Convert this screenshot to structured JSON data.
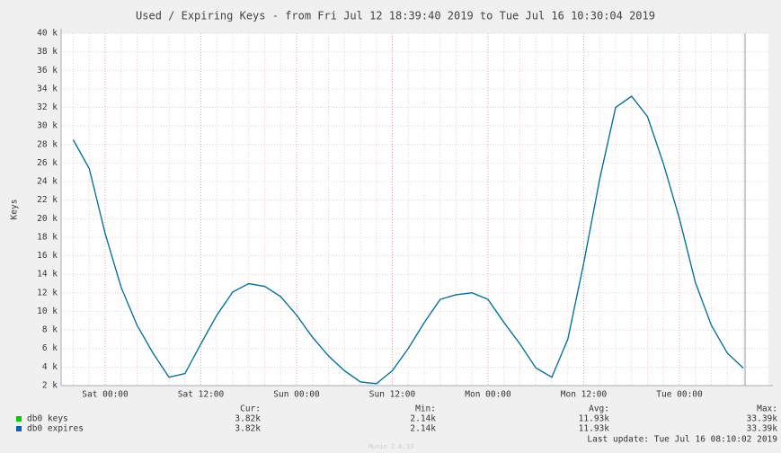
{
  "chart_data": {
    "type": "line",
    "title": "Used / Expiring Keys - from Fri Jul 12 18:39:40 2019 to Tue Jul 16 10:30:04 2019",
    "y_label": "Keys",
    "categories": [
      null,
      null,
      "Sat 00:00",
      null,
      null,
      null,
      null,
      null,
      "Sat 12:00",
      null,
      null,
      null,
      null,
      null,
      "Sun 00:00",
      null,
      null,
      null,
      null,
      null,
      "Sun 12:00",
      null,
      null,
      null,
      null,
      null,
      "Mon 00:00",
      null,
      null,
      null,
      null,
      null,
      "Mon 12:00",
      null,
      null,
      null,
      null,
      null,
      "Tue 00:00",
      null,
      null,
      null,
      null
    ],
    "series": [
      {
        "name": "db0 keys",
        "color": "#00cc00",
        "cur": "3.82k",
        "min": "2.14k",
        "avg": "11.93k",
        "max": "33.39k",
        "values": [
          28500,
          25400,
          18400,
          12600,
          8500,
          5500,
          2900,
          3300,
          6500,
          9600,
          12100,
          13000,
          12700,
          11600,
          9600,
          7200,
          5200,
          3600,
          2400,
          2200,
          3600,
          6000,
          8800,
          11300,
          11800,
          12000,
          11300,
          8800,
          6500,
          3900,
          2900,
          7000,
          15200,
          24300,
          32000,
          33200,
          31000,
          25900,
          20000,
          13100,
          8500,
          5500,
          3900
        ]
      },
      {
        "name": "db0 expires",
        "color": "#0066b3",
        "cur": "3.82k",
        "min": "2.14k",
        "avg": "11.93k",
        "max": "33.39k",
        "values": [
          28500,
          25400,
          18400,
          12600,
          8500,
          5500,
          2900,
          3300,
          6500,
          9600,
          12100,
          13000,
          12700,
          11600,
          9600,
          7200,
          5200,
          3600,
          2400,
          2200,
          3600,
          6000,
          8800,
          11300,
          11800,
          12000,
          11300,
          8800,
          6500,
          3900,
          2900,
          7000,
          15200,
          24300,
          32000,
          33200,
          31000,
          25900,
          20000,
          13100,
          8500,
          5500,
          3900
        ]
      }
    ],
    "legend_headers": [
      "Cur:",
      "Min:",
      "Avg:",
      "Max:"
    ],
    "last_update": "Last update: Tue Jul 16 08:10:02 2019",
    "footer": "Munin 2.0.33",
    "ylim": [
      2000,
      40000
    ],
    "yticks": [
      {
        "value": 2000,
        "label": "2 k"
      },
      {
        "value": 4000,
        "label": "4 k"
      },
      {
        "value": 6000,
        "label": "6 k"
      },
      {
        "value": 8000,
        "label": "8 k"
      },
      {
        "value": 10000,
        "label": "10 k"
      },
      {
        "value": 12000,
        "label": "12 k"
      },
      {
        "value": 14000,
        "label": "14 k"
      },
      {
        "value": 16000,
        "label": "16 k"
      },
      {
        "value": 18000,
        "label": "18 k"
      },
      {
        "value": 20000,
        "label": "20 k"
      },
      {
        "value": 22000,
        "label": "22 k"
      },
      {
        "value": 24000,
        "label": "24 k"
      },
      {
        "value": 26000,
        "label": "26 k"
      },
      {
        "value": 28000,
        "label": "28 k"
      },
      {
        "value": 30000,
        "label": "30 k"
      },
      {
        "value": 32000,
        "label": "32 k"
      },
      {
        "value": 34000,
        "label": "34 k"
      },
      {
        "value": 36000,
        "label": "36 k"
      },
      {
        "value": 38000,
        "label": "38 k"
      },
      {
        "value": 40000,
        "label": "40 k"
      }
    ],
    "grid": true
  }
}
